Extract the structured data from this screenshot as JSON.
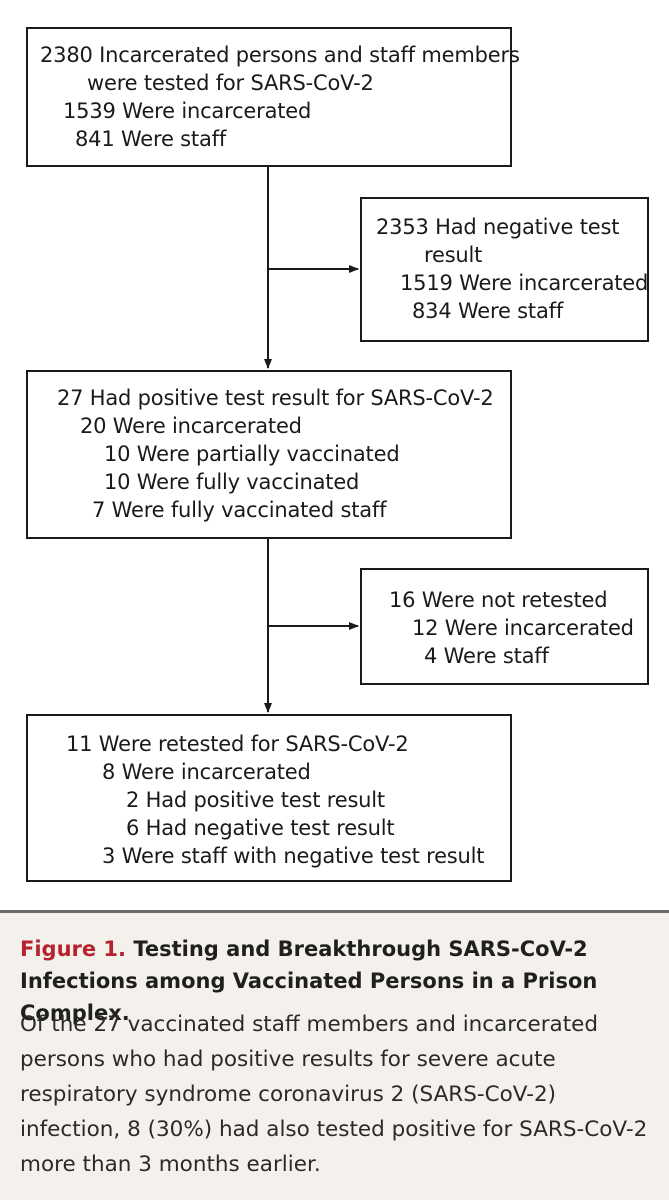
{
  "boxes": {
    "tested": {
      "line1": "2380 Incarcerated persons and staff members",
      "line2": "were tested for SARS-CoV-2",
      "line3": "1539 Were incarcerated",
      "line4": "841 Were staff"
    },
    "negative": {
      "line1": "2353 Had negative test",
      "line2": "result",
      "line3": "1519 Were incarcerated",
      "line4": "834 Were staff"
    },
    "positive": {
      "line1": "27 Had positive test result for SARS-CoV-2",
      "line2": "20 Were incarcerated",
      "line3": "10 Were partially vaccinated",
      "line4": "10 Were fully vaccinated",
      "line5": "7 Were fully vaccinated staff"
    },
    "not_retested": {
      "line1": "16 Were not retested",
      "line2": "12 Were incarcerated",
      "line3": "4 Were staff"
    },
    "retested": {
      "line1": "11 Were retested for SARS-CoV-2",
      "line2": "8 Were incarcerated",
      "line3": "2 Had positive test result",
      "line4": "6 Had negative test result",
      "line5": "3 Were staff with negative test result"
    }
  },
  "caption": {
    "label": "Figure 1.",
    "title": "Testing and Breakthrough SARS-CoV-2 Infections among Vaccinated Persons in a Prison Complex.",
    "body": "Of the 27 vaccinated staff members and incarcerated persons who had positive results for severe acute respiratory syndrome coronavirus 2 (SARS-CoV-2) infection, 8 (30%) had also tested positive for SARS-CoV-2 more than 3 months earlier."
  },
  "colors": {
    "figure_label": "#b5232e",
    "caption_background": "#f4f1ec"
  }
}
